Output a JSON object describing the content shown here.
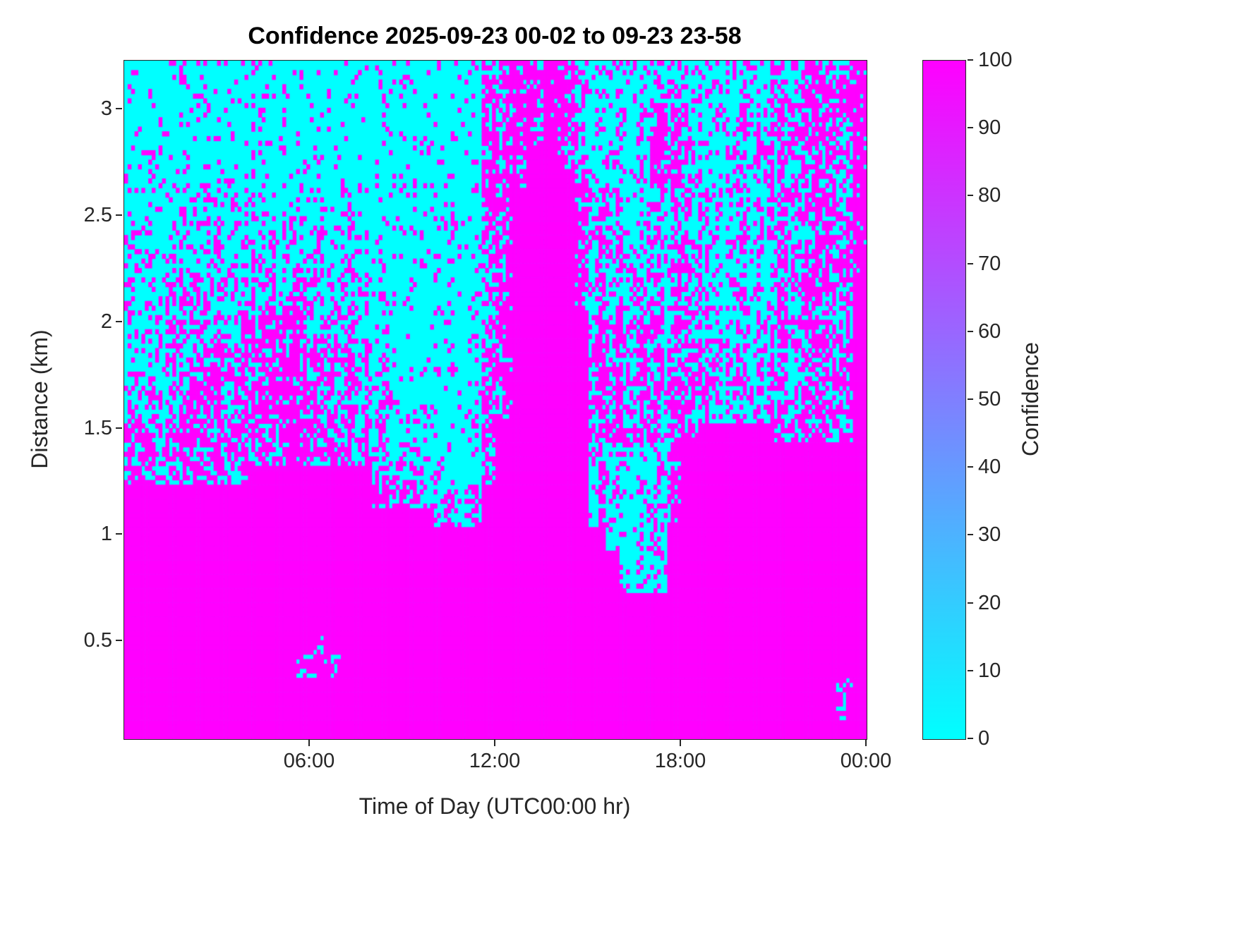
{
  "chart_data": {
    "type": "heatmap",
    "title": "Confidence 2025-09-23 00-02 to 09-23 23-58",
    "xlabel": "Time of Day (UTC00:00 hr)",
    "ylabel": "Distance (km)",
    "colormap": "cool",
    "x_range_hours": [
      0,
      24
    ],
    "y_range_km": [
      0.04,
      3.23
    ],
    "value_range": [
      0,
      100
    ],
    "values_present": [
      0,
      100
    ],
    "x_ticks": [
      {
        "hour": 6,
        "label": "06:00"
      },
      {
        "hour": 12,
        "label": "12:00"
      },
      {
        "hour": 18,
        "label": "18:00"
      },
      {
        "hour": 24,
        "label": "00:00"
      }
    ],
    "y_ticks": [
      {
        "value": 0.5,
        "label": "0.5"
      },
      {
        "value": 1.0,
        "label": "1"
      },
      {
        "value": 1.5,
        "label": "1.5"
      },
      {
        "value": 2.0,
        "label": "2"
      },
      {
        "value": 2.5,
        "label": "2.5"
      },
      {
        "value": 3.0,
        "label": "3"
      }
    ],
    "colorbar": {
      "label": "Confidence",
      "ticks": [
        0,
        10,
        20,
        30,
        40,
        50,
        60,
        70,
        80,
        90,
        100
      ]
    },
    "colors": {
      "low": "#00FFFF",
      "high": "#FF00FF"
    },
    "grid_legend": "Coarse 48x32 density grid of the binary confidence field; digit/9 = fraction of magenta (confidence 100) cells in that block; rows top-to-bottom span 3.23 to 0.04 km, columns left-to-right span 00:00 to 24:00",
    "grid_rows_top_to_bottom": [
      "111111111111111111111115577874222222222233456558",
      "111111111111111111111115577874222222222233456558",
      "111111111111111111111115577874222265222233456558",
      "111111111111111111111115577974222265222233456558",
      "111111111111111111111115679974222265222233456558",
      "111111221111111111111115679994222265222233456558",
      "111112222112212111111115699996442232222233456558",
      "121122222222222211112215699996442232222233456558",
      "222222222222222211111113699996443333332233456558",
      "222222333222224211111113699996443333332233456558",
      "222233333344344321111113799996443333332233456559",
      "222333333344344321111113799996443333332233456559",
      "223333356676345321111113799999665545332233456559",
      "233335556676555421111113799999665545343334456559",
      "333355556676555421111114799999665545443334456559",
      "333455556676555432111114799999665545443334456559",
      "334455556676555432221124799999665545443334456559",
      "654455556676555432221124999999665545499999456559",
      "654455556676555432221124999999432225999999999999",
      "654455559999999954431124999999432225999999999999",
      "999999999999999954433349999999432225999999999999",
      "999999999999999999993349999999432225999999999999",
      "999999999999999999999999999999932229999999999999",
      "999999999999999999999999999999992229999999999999",
      "999999999999999999999999999999992229999999999999",
      "999999999999999999999999999999999999999999999999",
      "999999999999999999999999999999999999999999999999",
      "999999999999799999999999999999999999999999999999",
      "999999999996679999999999999999999999999999999999",
      "999999999999999999999999999999999999999999999979",
      "999999999999999999999999999999999999999999999979",
      "999999999999999999999999999999999999999999999999"
    ]
  }
}
